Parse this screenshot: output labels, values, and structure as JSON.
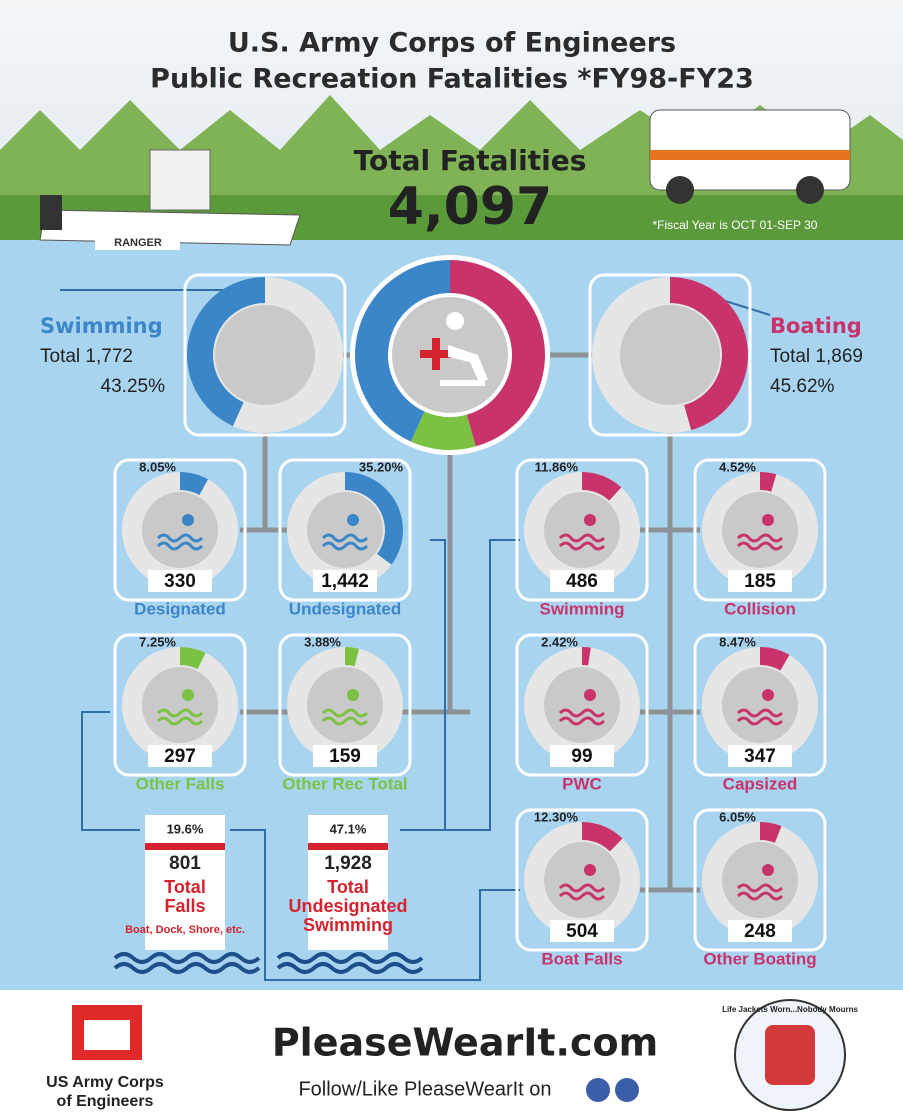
{
  "header": {
    "title_lines": [
      "U.S. Army Corps of Engineers",
      "Public Recreation Fatalities *FY98-FY23"
    ],
    "total_label": "Total Fatalities",
    "total": "4,097",
    "note": "*Fiscal Year is OCT 01-SEP 30",
    "boat_label": "RANGER"
  },
  "summary": {
    "swimming": {
      "name": "Swimming",
      "total": "Total 1,772",
      "percent": "43.25%",
      "color": "#3a86c8"
    },
    "boating": {
      "name": "Boating",
      "total": "Total 1,869",
      "percent": "45.62%",
      "color": "#c8336b"
    },
    "other_color": "#7cc242"
  },
  "categories": [
    {
      "name": "Designated",
      "count": "330",
      "percent": "8.05%",
      "color": "#3a86c8"
    },
    {
      "name": "Undesignated",
      "count": "1,442",
      "percent": "35.20%",
      "color": "#3a86c8"
    },
    {
      "name": "Other Falls",
      "count": "297",
      "percent": "7.25%",
      "color": "#7cc242"
    },
    {
      "name": "Other Rec Total",
      "count": "159",
      "percent": "3.88%",
      "color": "#7cc242"
    },
    {
      "name": "Swimming",
      "count": "486",
      "percent": "11.86%",
      "color": "#c8336b"
    },
    {
      "name": "Collision",
      "count": "185",
      "percent": "4.52%",
      "color": "#c8336b"
    },
    {
      "name": "PWC",
      "count": "99",
      "percent": "2.42%",
      "color": "#c8336b"
    },
    {
      "name": "Capsized",
      "count": "347",
      "percent": "8.47%",
      "color": "#c8336b"
    },
    {
      "name": "Boat Falls",
      "count": "504",
      "percent": "12.30%",
      "color": "#c8336b"
    },
    {
      "name": "Other Boating",
      "count": "248",
      "percent": "6.05%",
      "color": "#c8336b"
    }
  ],
  "totals": [
    {
      "percent": "19.6%",
      "value": "801",
      "title_lines": [
        "Total",
        "Falls"
      ],
      "note": "Boat, Dock, Shore, etc."
    },
    {
      "percent": "47.1%",
      "value": "1,928",
      "title_lines": [
        "Total",
        "Undesignated",
        "Swimming"
      ]
    }
  ],
  "footer": {
    "org_lines": [
      "US Army Corps",
      "of Engineers"
    ],
    "site": "PleaseWearIt.com",
    "follow": "Follow/Like PleaseWearIt on",
    "badge": "Life Jackets Worn...Nobody Mourns"
  }
}
